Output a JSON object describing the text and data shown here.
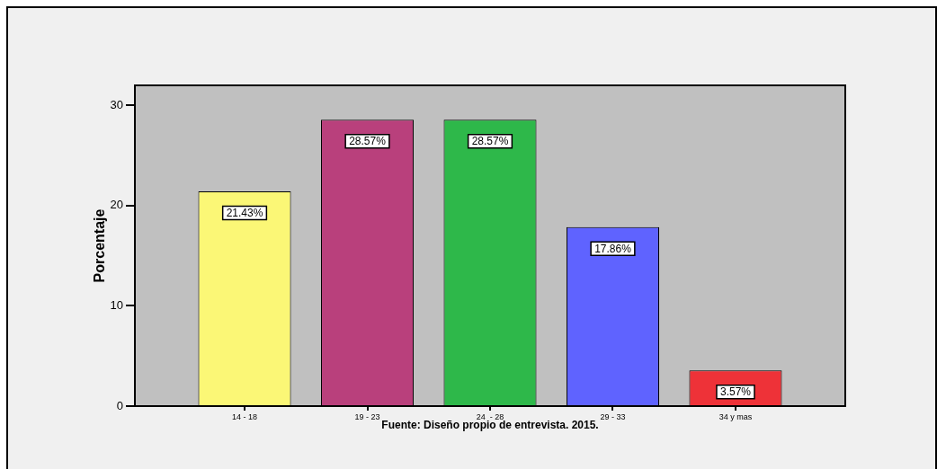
{
  "chart_data": {
    "type": "bar",
    "xlabel": "Fuente: Diseño propio de entrevista. 2015.",
    "ylabel": "Porcentaje",
    "categories": [
      "14 - 18",
      "19 - 23",
      "24  - 28",
      "29 - 33",
      "34 y mas"
    ],
    "values": [
      21.43,
      28.57,
      28.57,
      17.86,
      3.57
    ],
    "colors": [
      "#fbf776",
      "#b9407c",
      "#2eb84a",
      "#5f63ff",
      "#ee3238"
    ],
    "value_labels": [
      "21.43%",
      "28.57%",
      "28.57%",
      "17.86%",
      "3.57%"
    ],
    "ylim": [
      0,
      32
    ],
    "yticks": [
      0,
      10,
      20,
      30
    ]
  }
}
